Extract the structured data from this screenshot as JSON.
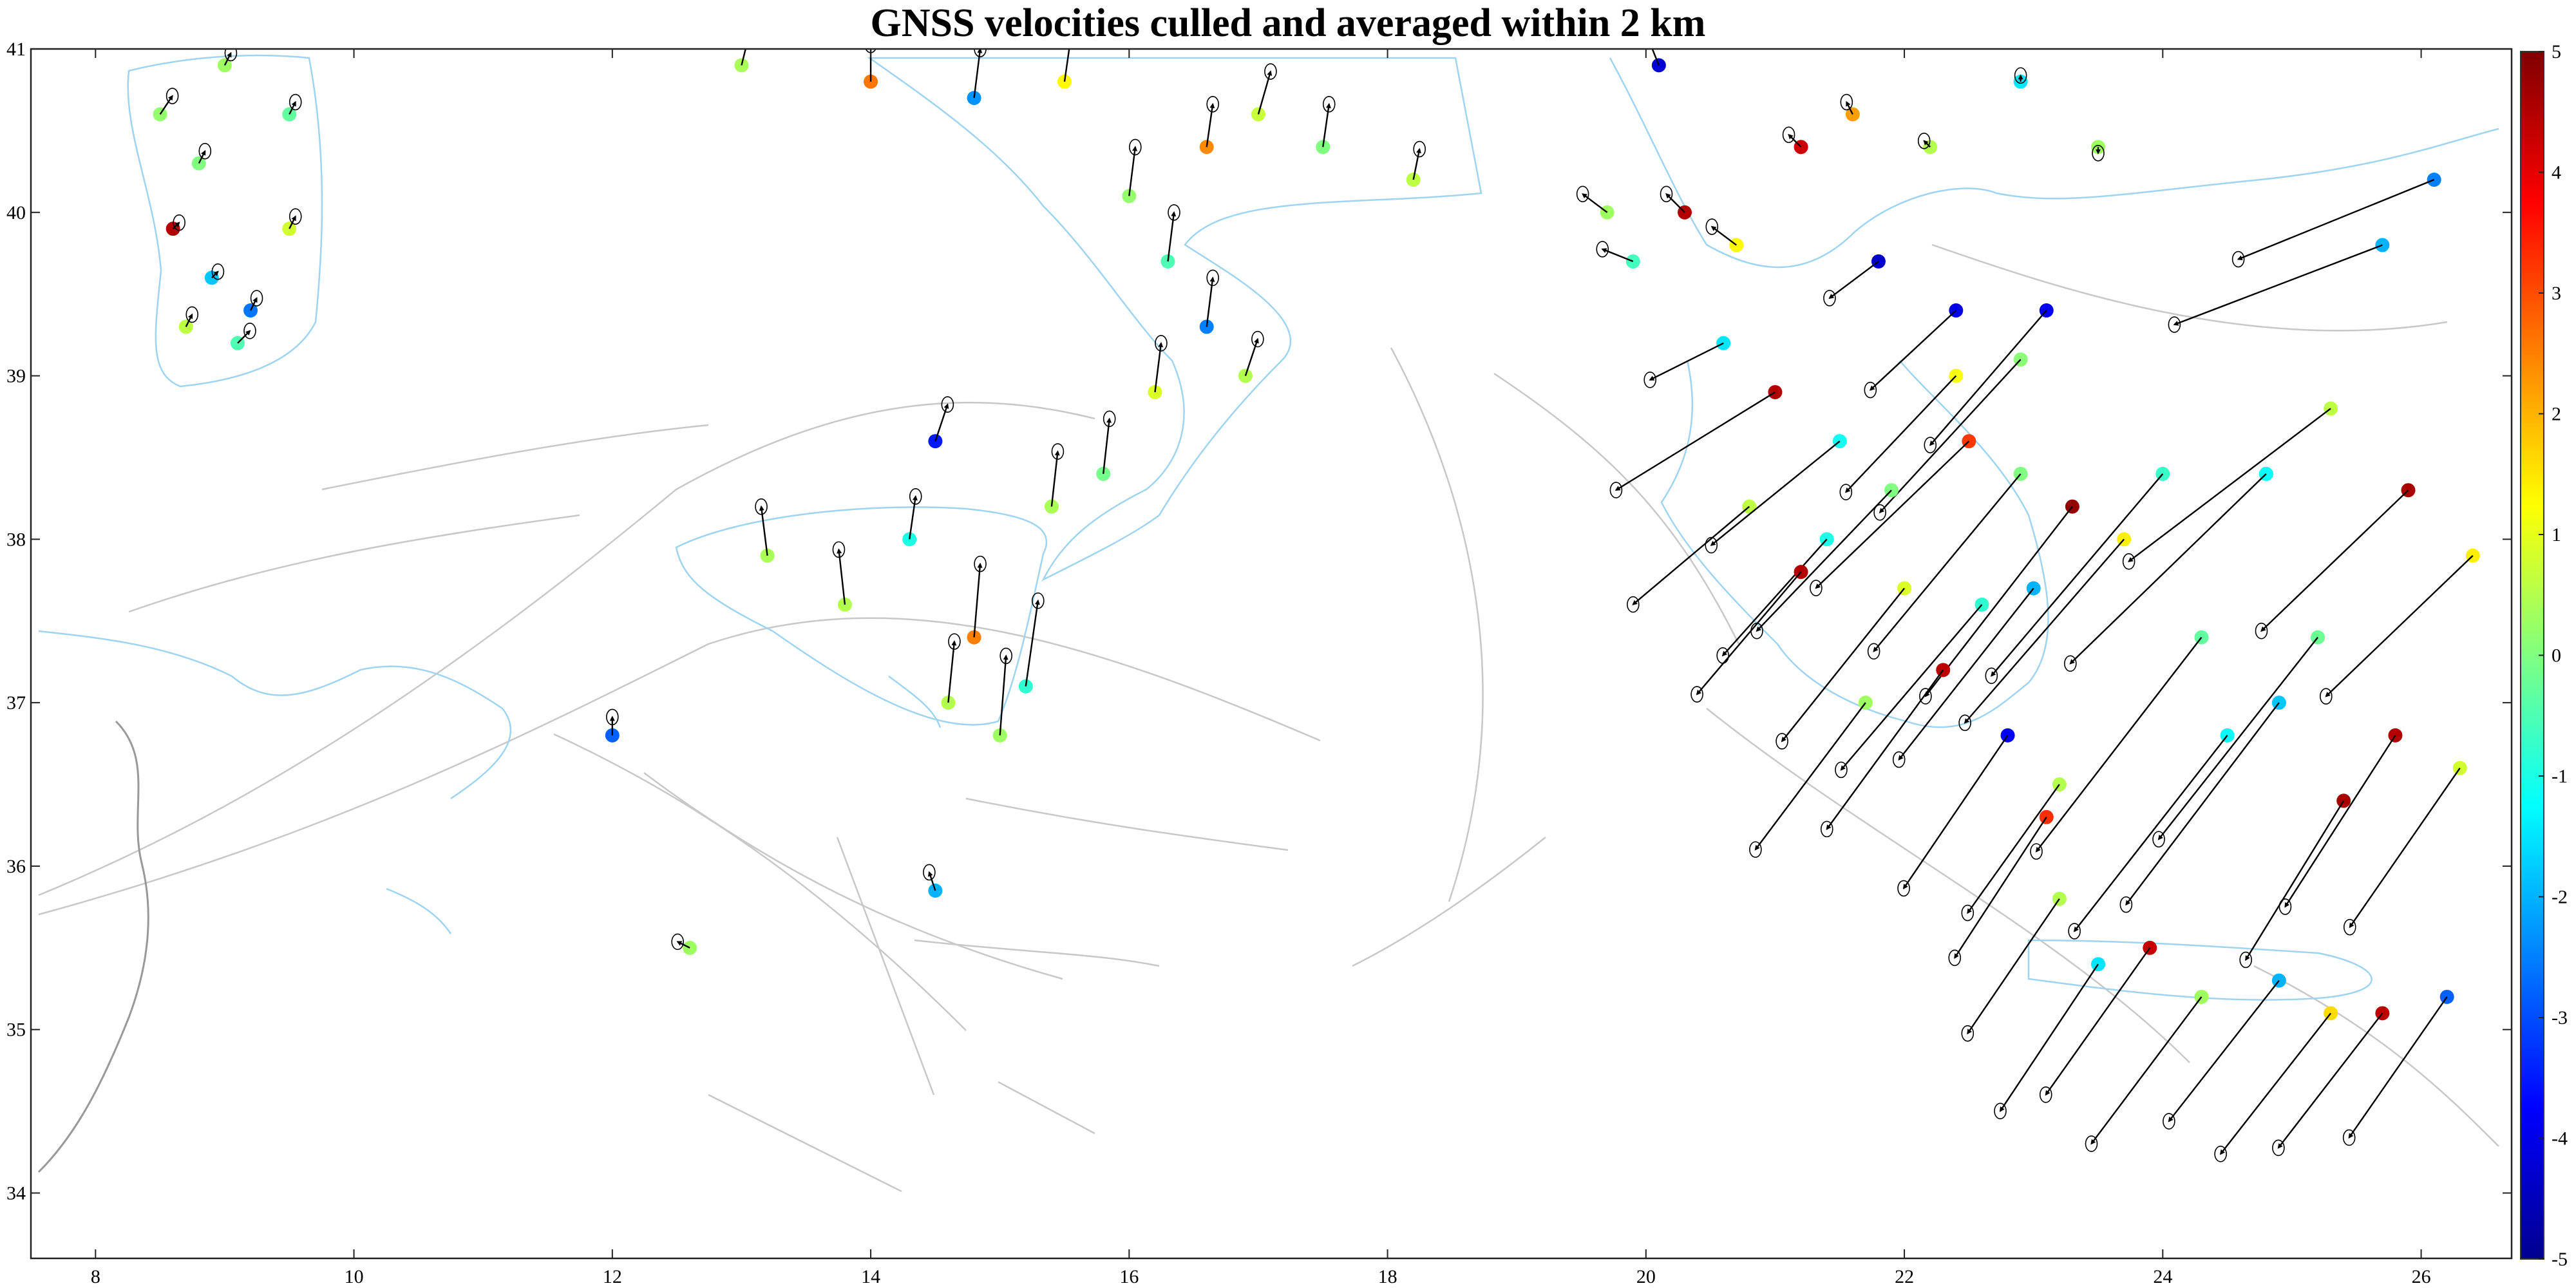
{
  "title": "GNSS velocities culled and averaged within 2 km",
  "axes": {
    "xlim": [
      7.5,
      26.7
    ],
    "ylim": [
      33.6,
      41
    ],
    "xticks": [
      "8",
      "10",
      "12",
      "14",
      "16",
      "18",
      "20",
      "22",
      "24",
      "26"
    ],
    "yticks": [
      "34",
      "35",
      "36",
      "37",
      "38",
      "39",
      "40",
      "41"
    ]
  },
  "colorbar": {
    "min": -5,
    "max": 5,
    "ticks": [
      "5",
      "4",
      "3",
      "2",
      "1",
      "0",
      "-1",
      "-2",
      "-3",
      "-4",
      "-5"
    ],
    "colormap": "jet",
    "stops": [
      "#00008f",
      "#0000ff",
      "#0080ff",
      "#00ffff",
      "#80ff80",
      "#ffff00",
      "#ff8000",
      "#ff0000",
      "#800000"
    ]
  },
  "map_colors": {
    "coastline": "#9fd4f0",
    "faults": "#c8c8c8",
    "borders": "#999999",
    "vectors": "#000000"
  },
  "chart_data": {
    "type": "scatter",
    "description_keys": [
      "lon",
      "lat",
      "ve",
      "vn",
      "vu"
    ],
    "stations": [
      {
        "lon": 8.5,
        "lat": 40.6,
        "ve": 0.2,
        "vn": 0.3,
        "vu": 0.2
      },
      {
        "lon": 8.8,
        "lat": 40.3,
        "ve": 0.1,
        "vn": 0.2,
        "vu": 0.0
      },
      {
        "lon": 8.6,
        "lat": 39.9,
        "ve": 0.1,
        "vn": 0.1,
        "vu": 4.5
      },
      {
        "lon": 8.9,
        "lat": 39.6,
        "ve": 0.1,
        "vn": 0.1,
        "vu": -1.8
      },
      {
        "lon": 9.2,
        "lat": 39.4,
        "ve": 0.1,
        "vn": 0.2,
        "vu": -2.6
      },
      {
        "lon": 8.7,
        "lat": 39.3,
        "ve": 0.1,
        "vn": 0.2,
        "vu": 0.6
      },
      {
        "lon": 9.1,
        "lat": 39.2,
        "ve": 0.2,
        "vn": 0.2,
        "vu": -0.5
      },
      {
        "lon": 9.5,
        "lat": 39.9,
        "ve": 0.1,
        "vn": 0.2,
        "vu": 0.8
      },
      {
        "lon": 9.5,
        "lat": 40.6,
        "ve": 0.1,
        "vn": 0.2,
        "vu": -0.3
      },
      {
        "lon": 9.0,
        "lat": 40.9,
        "ve": 0.1,
        "vn": 0.2,
        "vu": 0.3
      },
      {
        "lon": 12.0,
        "lat": 36.8,
        "ve": 0.0,
        "vn": 0.3,
        "vu": -2.8
      },
      {
        "lon": 12.6,
        "lat": 35.5,
        "ve": -0.2,
        "vn": 0.1,
        "vu": 0.3
      },
      {
        "lon": 14.5,
        "lat": 35.85,
        "ve": -0.1,
        "vn": 0.3,
        "vu": -2.0
      },
      {
        "lon": 13.2,
        "lat": 37.9,
        "ve": -0.1,
        "vn": 0.8,
        "vu": 0.4
      },
      {
        "lon": 13.8,
        "lat": 37.6,
        "ve": -0.1,
        "vn": 0.9,
        "vu": 0.5
      },
      {
        "lon": 14.3,
        "lat": 38.0,
        "ve": 0.1,
        "vn": 0.7,
        "vu": -1.0
      },
      {
        "lon": 14.8,
        "lat": 37.4,
        "ve": 0.1,
        "vn": 1.2,
        "vu": 2.5
      },
      {
        "lon": 15.2,
        "lat": 37.1,
        "ve": 0.2,
        "vn": 1.4,
        "vu": -0.8
      },
      {
        "lon": 15.0,
        "lat": 36.8,
        "ve": 0.1,
        "vn": 1.3,
        "vu": 0.3
      },
      {
        "lon": 14.6,
        "lat": 37.0,
        "ve": 0.1,
        "vn": 1.0,
        "vu": 0.5
      },
      {
        "lon": 14.5,
        "lat": 38.6,
        "ve": 0.2,
        "vn": 0.6,
        "vu": -3.5
      },
      {
        "lon": 15.4,
        "lat": 38.2,
        "ve": 0.1,
        "vn": 0.9,
        "vu": 0.4
      },
      {
        "lon": 15.8,
        "lat": 38.4,
        "ve": 0.1,
        "vn": 0.9,
        "vu": -0.1
      },
      {
        "lon": 16.2,
        "lat": 38.9,
        "ve": 0.1,
        "vn": 0.8,
        "vu": 0.9
      },
      {
        "lon": 16.6,
        "lat": 39.3,
        "ve": 0.1,
        "vn": 0.8,
        "vu": -2.5
      },
      {
        "lon": 16.9,
        "lat": 39.0,
        "ve": 0.2,
        "vn": 0.6,
        "vu": 0.5
      },
      {
        "lon": 16.3,
        "lat": 39.7,
        "ve": 0.1,
        "vn": 0.8,
        "vu": -0.5
      },
      {
        "lon": 16.0,
        "lat": 40.1,
        "ve": 0.1,
        "vn": 0.8,
        "vu": 0.2
      },
      {
        "lon": 16.6,
        "lat": 40.4,
        "ve": 0.1,
        "vn": 0.7,
        "vu": 2.4
      },
      {
        "lon": 17.0,
        "lat": 40.6,
        "ve": 0.2,
        "vn": 0.7,
        "vu": 0.7
      },
      {
        "lon": 17.5,
        "lat": 40.4,
        "ve": 0.1,
        "vn": 0.7,
        "vu": 0.0
      },
      {
        "lon": 18.2,
        "lat": 40.2,
        "ve": 0.1,
        "vn": 0.5,
        "vu": 0.6
      },
      {
        "lon": 15.5,
        "lat": 40.8,
        "ve": 0.1,
        "vn": 0.7,
        "vu": 1.3
      },
      {
        "lon": 14.8,
        "lat": 40.7,
        "ve": 0.1,
        "vn": 0.8,
        "vu": -2.3
      },
      {
        "lon": 14.0,
        "lat": 40.8,
        "ve": 0.0,
        "vn": 0.6,
        "vu": 2.6
      },
      {
        "lon": 13.0,
        "lat": 40.9,
        "ve": 0.1,
        "vn": 0.4,
        "vu": 0.4
      },
      {
        "lon": 19.7,
        "lat": 40.0,
        "ve": -0.4,
        "vn": 0.3,
        "vu": 0.3
      },
      {
        "lon": 19.9,
        "lat": 39.7,
        "ve": -0.5,
        "vn": 0.2,
        "vu": -0.6
      },
      {
        "lon": 20.1,
        "lat": 40.9,
        "ve": -0.2,
        "vn": 0.5,
        "vu": -4.2
      },
      {
        "lon": 20.3,
        "lat": 40.0,
        "ve": -0.3,
        "vn": 0.3,
        "vu": 4.5
      },
      {
        "lon": 20.7,
        "lat": 39.8,
        "ve": -0.4,
        "vn": 0.3,
        "vu": 1.3
      },
      {
        "lon": 20.6,
        "lat": 39.2,
        "ve": -1.2,
        "vn": -0.6,
        "vu": -1.5
      },
      {
        "lon": 21.0,
        "lat": 38.9,
        "ve": -2.6,
        "vn": -1.6,
        "vu": 4.5
      },
      {
        "lon": 21.2,
        "lat": 40.4,
        "ve": -0.2,
        "vn": 0.2,
        "vu": 4.2
      },
      {
        "lon": 21.6,
        "lat": 40.6,
        "ve": -0.1,
        "vn": 0.2,
        "vu": 2.2
      },
      {
        "lon": 22.2,
        "lat": 40.4,
        "ve": -0.1,
        "vn": 0.1,
        "vu": 0.5
      },
      {
        "lon": 22.9,
        "lat": 40.8,
        "ve": 0.0,
        "vn": 0.1,
        "vu": -1.5
      },
      {
        "lon": 23.5,
        "lat": 40.4,
        "ve": 0.0,
        "vn": -0.1,
        "vu": 0.3
      },
      {
        "lon": 21.8,
        "lat": 39.7,
        "ve": -0.8,
        "vn": -0.6,
        "vu": -4.3
      },
      {
        "lon": 22.4,
        "lat": 39.4,
        "ve": -1.4,
        "vn": -1.3,
        "vu": -4.0
      },
      {
        "lon": 22.4,
        "lat": 39.0,
        "ve": -1.8,
        "vn": -1.9,
        "vu": 1.2
      },
      {
        "lon": 22.9,
        "lat": 39.1,
        "ve": -2.3,
        "vn": -2.5,
        "vu": 0.1
      },
      {
        "lon": 23.1,
        "lat": 39.4,
        "ve": -1.9,
        "vn": -2.2,
        "vu": -3.9
      },
      {
        "lon": 22.5,
        "lat": 38.6,
        "ve": -2.5,
        "vn": -2.4,
        "vu": 3.2
      },
      {
        "lon": 21.9,
        "lat": 38.3,
        "ve": -2.2,
        "vn": -2.3,
        "vu": 0.0
      },
      {
        "lon": 21.4,
        "lat": 38.0,
        "ve": -1.7,
        "vn": -1.9,
        "vu": -1.0
      },
      {
        "lon": 21.2,
        "lat": 37.8,
        "ve": -1.7,
        "vn": -2.0,
        "vu": 4.5
      },
      {
        "lon": 20.8,
        "lat": 38.2,
        "ve": -1.9,
        "vn": -1.6,
        "vu": 0.6
      },
      {
        "lon": 23.3,
        "lat": 38.2,
        "ve": -2.4,
        "vn": -3.1,
        "vu": 4.8
      },
      {
        "lon": 23.7,
        "lat": 38.0,
        "ve": -2.6,
        "vn": -3.0,
        "vu": 1.4
      },
      {
        "lon": 24.0,
        "lat": 38.4,
        "ve": -2.8,
        "vn": -3.3,
        "vu": -0.7
      },
      {
        "lon": 23.0,
        "lat": 37.7,
        "ve": -2.2,
        "vn": -2.8,
        "vu": -2.0
      },
      {
        "lon": 22.3,
        "lat": 37.2,
        "ve": -1.9,
        "vn": -2.6,
        "vu": 4.4
      },
      {
        "lon": 21.7,
        "lat": 37.0,
        "ve": -1.8,
        "vn": -2.4,
        "vu": 0.3
      },
      {
        "lon": 22.8,
        "lat": 36.8,
        "ve": -1.7,
        "vn": -2.5,
        "vu": -3.8
      },
      {
        "lon": 23.1,
        "lat": 36.3,
        "ve": -1.5,
        "vn": -2.3,
        "vu": 3.3
      },
      {
        "lon": 23.2,
        "lat": 36.5,
        "ve": -1.5,
        "vn": -2.1,
        "vu": 0.5
      },
      {
        "lon": 24.3,
        "lat": 37.4,
        "ve": -2.7,
        "vn": -3.5,
        "vu": -0.3
      },
      {
        "lon": 24.5,
        "lat": 36.8,
        "ve": -2.5,
        "vn": -3.2,
        "vu": -1.2
      },
      {
        "lon": 24.9,
        "lat": 37.0,
        "ve": -2.5,
        "vn": -3.3,
        "vu": -1.8
      },
      {
        "lon": 25.2,
        "lat": 37.4,
        "ve": -2.6,
        "vn": -3.3,
        "vu": -0.2
      },
      {
        "lon": 25.4,
        "lat": 36.4,
        "ve": -1.6,
        "vn": -2.6,
        "vu": 4.6
      },
      {
        "lon": 25.8,
        "lat": 36.8,
        "ve": -1.8,
        "vn": -2.8,
        "vu": 4.5
      },
      {
        "lon": 26.3,
        "lat": 36.6,
        "ve": -1.8,
        "vn": -2.6,
        "vu": 0.8
      },
      {
        "lon": 24.8,
        "lat": 38.4,
        "ve": -3.2,
        "vn": -3.1,
        "vu": -1.2
      },
      {
        "lon": 25.3,
        "lat": 38.8,
        "ve": -3.3,
        "vn": -2.5,
        "vu": 0.6
      },
      {
        "lon": 25.7,
        "lat": 39.8,
        "ve": -3.4,
        "vn": -1.3,
        "vu": -2.0
      },
      {
        "lon": 26.1,
        "lat": 40.2,
        "ve": -3.2,
        "vn": -1.3,
        "vu": -2.5
      },
      {
        "lon": 25.9,
        "lat": 38.3,
        "ve": -2.4,
        "vn": -2.3,
        "vu": 4.6
      },
      {
        "lon": 26.4,
        "lat": 37.9,
        "ve": -2.4,
        "vn": -2.3,
        "vu": 1.4
      },
      {
        "lon": 23.9,
        "lat": 35.5,
        "ve": -1.7,
        "vn": -2.4,
        "vu": 4.3
      },
      {
        "lon": 23.5,
        "lat": 35.4,
        "ve": -1.6,
        "vn": -2.4,
        "vu": -1.5
      },
      {
        "lon": 24.3,
        "lat": 35.2,
        "ve": -1.8,
        "vn": -2.4,
        "vu": 0.3
      },
      {
        "lon": 24.9,
        "lat": 35.3,
        "ve": -1.8,
        "vn": -2.3,
        "vu": -2.0
      },
      {
        "lon": 25.3,
        "lat": 35.1,
        "ve": -1.8,
        "vn": -2.3,
        "vu": 1.6
      },
      {
        "lon": 25.7,
        "lat": 35.1,
        "ve": -1.7,
        "vn": -2.2,
        "vu": 4.4
      },
      {
        "lon": 26.2,
        "lat": 35.2,
        "ve": -1.6,
        "vn": -2.3,
        "vu": -2.8
      },
      {
        "lon": 23.2,
        "lat": 35.8,
        "ve": -1.5,
        "vn": -2.2,
        "vu": 0.5
      },
      {
        "lon": 22.6,
        "lat": 37.6,
        "ve": -2.3,
        "vn": -2.7,
        "vu": -0.8
      },
      {
        "lon": 22.0,
        "lat": 37.7,
        "ve": -2.0,
        "vn": -2.5,
        "vu": 0.9
      },
      {
        "lon": 21.5,
        "lat": 38.6,
        "ve": -2.1,
        "vn": -1.7,
        "vu": -1.1
      },
      {
        "lon": 22.9,
        "lat": 38.4,
        "ve": -2.4,
        "vn": -2.9,
        "vu": 0.0
      }
    ]
  }
}
